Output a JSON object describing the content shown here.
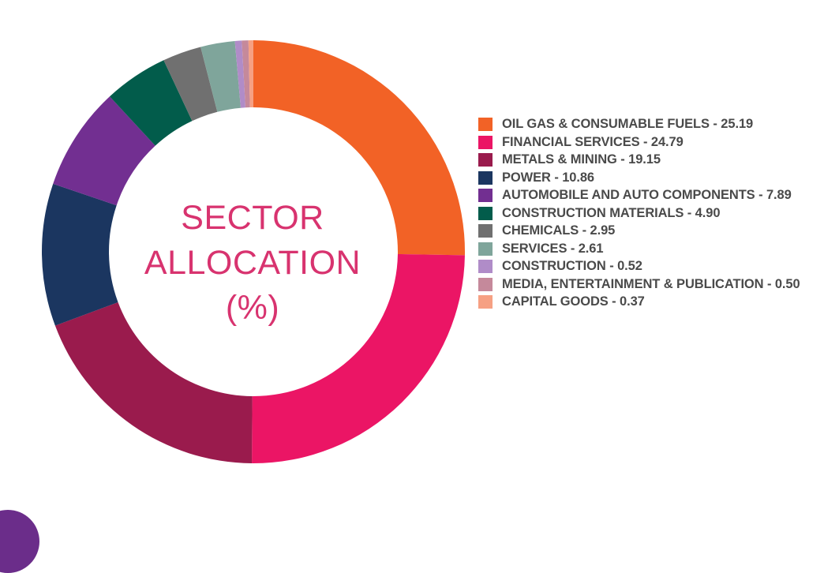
{
  "chart_data": {
    "type": "pie",
    "title_lines": [
      "SECTOR",
      "ALLOCATION",
      "(%)"
    ],
    "legend_position": "right",
    "slices": [
      {
        "label": "OIL GAS & CONSUMABLE FUELS - 25.19",
        "value": 25.19,
        "color": "#f26226"
      },
      {
        "label": "FINANCIAL SERVICES - 24.79",
        "value": 24.79,
        "color": "#eb1565"
      },
      {
        "label": "METALS & MINING - 19.15",
        "value": 19.15,
        "color": "#9a1b4d"
      },
      {
        "label": "POWER - 10.86",
        "value": 10.86,
        "color": "#1b3660"
      },
      {
        "label": "AUTOMOBILE AND AUTO COMPONENTS - 7.89",
        "value": 7.89,
        "color": "#722f91"
      },
      {
        "label": "CONSTRUCTION MATERIALS - 4.90",
        "value": 4.9,
        "color": "#025c4b"
      },
      {
        "label": "CHEMICALS - 2.95",
        "value": 2.95,
        "color": "#707070"
      },
      {
        "label": "SERVICES - 2.61",
        "value": 2.61,
        "color": "#7fa59b"
      },
      {
        "label": "CONSTRUCTION - 0.52",
        "value": 0.52,
        "color": "#b08cc8"
      },
      {
        "label": "MEDIA, ENTERTAINMENT & PUBLICATION - 0.50",
        "value": 0.5,
        "color": "#c5899b"
      },
      {
        "label": "CAPITAL GOODS - 0.37",
        "value": 0.37,
        "color": "#f6a083"
      }
    ]
  }
}
